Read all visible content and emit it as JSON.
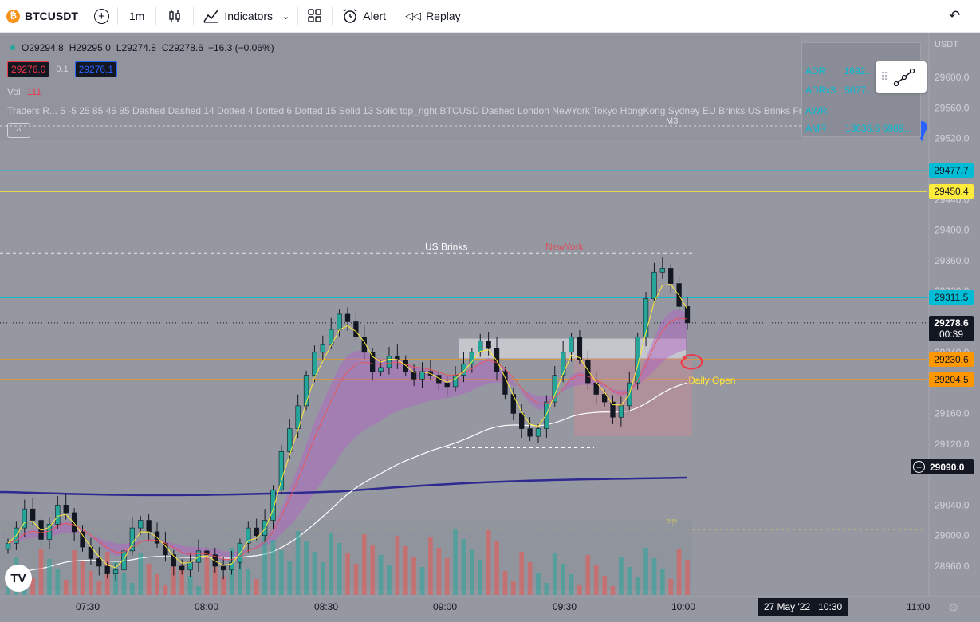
{
  "toolbar": {
    "symbol": "BTCUSDT",
    "interval": "1m",
    "indicators_label": "Indicators",
    "alert_label": "Alert",
    "replay_label": "Replay"
  },
  "legend": {
    "open_prefix": "O",
    "open": "29294.8",
    "high_prefix": "H",
    "high": "29295.0",
    "low_prefix": "L",
    "low": "29274.8",
    "close_prefix": "C",
    "close": "29278.6",
    "change": "−16.3 (−0.06%)",
    "bid": "29276.0",
    "spread": "0.1",
    "ask": "29276.1",
    "vol_label": "Vol",
    "vol_value": "111",
    "traders_line": "Traders R... 5 -5 25 85 45 85 Dashed Dashed 14 Dotted 4 Dotted 6 Dotted 15 Solid 13 Solid top_right BTCUSD Dashed London NewYork Tokyo HongKong Sydney EU Brinks US Brinks Frankfurt crypto ..."
  },
  "adr_box": {
    "rows": [
      {
        "label": "ADR",
        "value": "1692..."
      },
      {
        "label": "ADRx3",
        "value": "5077..."
      },
      {
        "label": "AWR",
        "value": ""
      },
      {
        "label": "AMR",
        "value": "13636.6 6989..."
      }
    ]
  },
  "price_axis": {
    "currency": "USDT",
    "ticks": [
      "29600.0",
      "29560.0",
      "29520.0",
      "29440.0",
      "29400.0",
      "29360.0",
      "29320.0",
      "29240.0",
      "29160.0",
      "29120.0",
      "29040.0",
      "29000.0",
      "28960.0"
    ],
    "labels": [
      {
        "value": "29477.7",
        "color": "#00bcd4",
        "text_color": "#131722"
      },
      {
        "value": "29450.4",
        "color": "#ffeb3b",
        "text_color": "#131722"
      },
      {
        "value": "29311.5",
        "color": "#00bcd4",
        "text_color": "#131722"
      },
      {
        "value": "29278.6",
        "countdown": "00:39",
        "color": "#131722",
        "text_color": "#ffffff"
      },
      {
        "value": "29230.6",
        "color": "#ff9800",
        "text_color": "#131722"
      },
      {
        "value": "29204.5",
        "color": "#ff9800",
        "text_color": "#131722"
      }
    ],
    "crosshair": "29090.0"
  },
  "time_axis": {
    "ticks": [
      "07:30",
      "08:00",
      "08:30",
      "09:00",
      "09:30",
      "10:00",
      "11:00"
    ],
    "date_badge_date": "27 May '22",
    "date_badge_time": "10:30"
  },
  "annotations": {
    "us_brinks": "US Brinks",
    "newyork": "NewYork",
    "m3": "M3",
    "pp": "PP",
    "daily_open": "Daily Open"
  },
  "colors": {
    "background": "#9598a1",
    "up": "#26a69a",
    "down": "#131722",
    "cyan_level": "#00bcd4",
    "yellow_level": "#ffeb3b",
    "orange_level": "#ff9800",
    "ema200": "#2e2a8f",
    "ema_white": "#ffffff",
    "cloud": "#b45fc8"
  },
  "chart_data": {
    "type": "candlestick",
    "symbol": "BTCUSDT",
    "interval": "1m",
    "x_ticks": [
      "07:30",
      "08:00",
      "08:30",
      "09:00",
      "09:30",
      "10:00"
    ],
    "ylim": [
      28940,
      29620
    ],
    "levels": [
      {
        "price": 29477.7,
        "color": "cyan"
      },
      {
        "price": 29450.4,
        "color": "yellow"
      },
      {
        "price": 29311.5,
        "color": "cyan"
      },
      {
        "price": 29230.6,
        "color": "orange"
      },
      {
        "price": 29204.5,
        "color": "orange",
        "label": "Daily Open"
      }
    ],
    "close_series": [
      28990,
      29010,
      29035,
      29020,
      28995,
      29015,
      29040,
      29030,
      29005,
      28985,
      28970,
      28960,
      28950,
      28955,
      28980,
      29010,
      29020,
      29005,
      28990,
      28975,
      28960,
      28955,
      28965,
      28980,
      28975,
      28960,
      28955,
      28965,
      28990,
      29010,
      29000,
      29020,
      29060,
      29110,
      29140,
      29170,
      29210,
      29240,
      29250,
      29270,
      29290,
      29280,
      29260,
      29240,
      29215,
      29220,
      29235,
      29230,
      29215,
      29205,
      29215,
      29210,
      29200,
      29195,
      29210,
      29225,
      29240,
      29255,
      29245,
      29215,
      29185,
      29160,
      29140,
      29130,
      29140,
      29175,
      29210,
      29240,
      29260,
      29230,
      29200,
      29185,
      29175,
      29155,
      29170,
      29200,
      29260,
      29310,
      29345,
      29350,
      29330,
      29300,
      29278.6
    ],
    "last_close": 29278.6
  }
}
